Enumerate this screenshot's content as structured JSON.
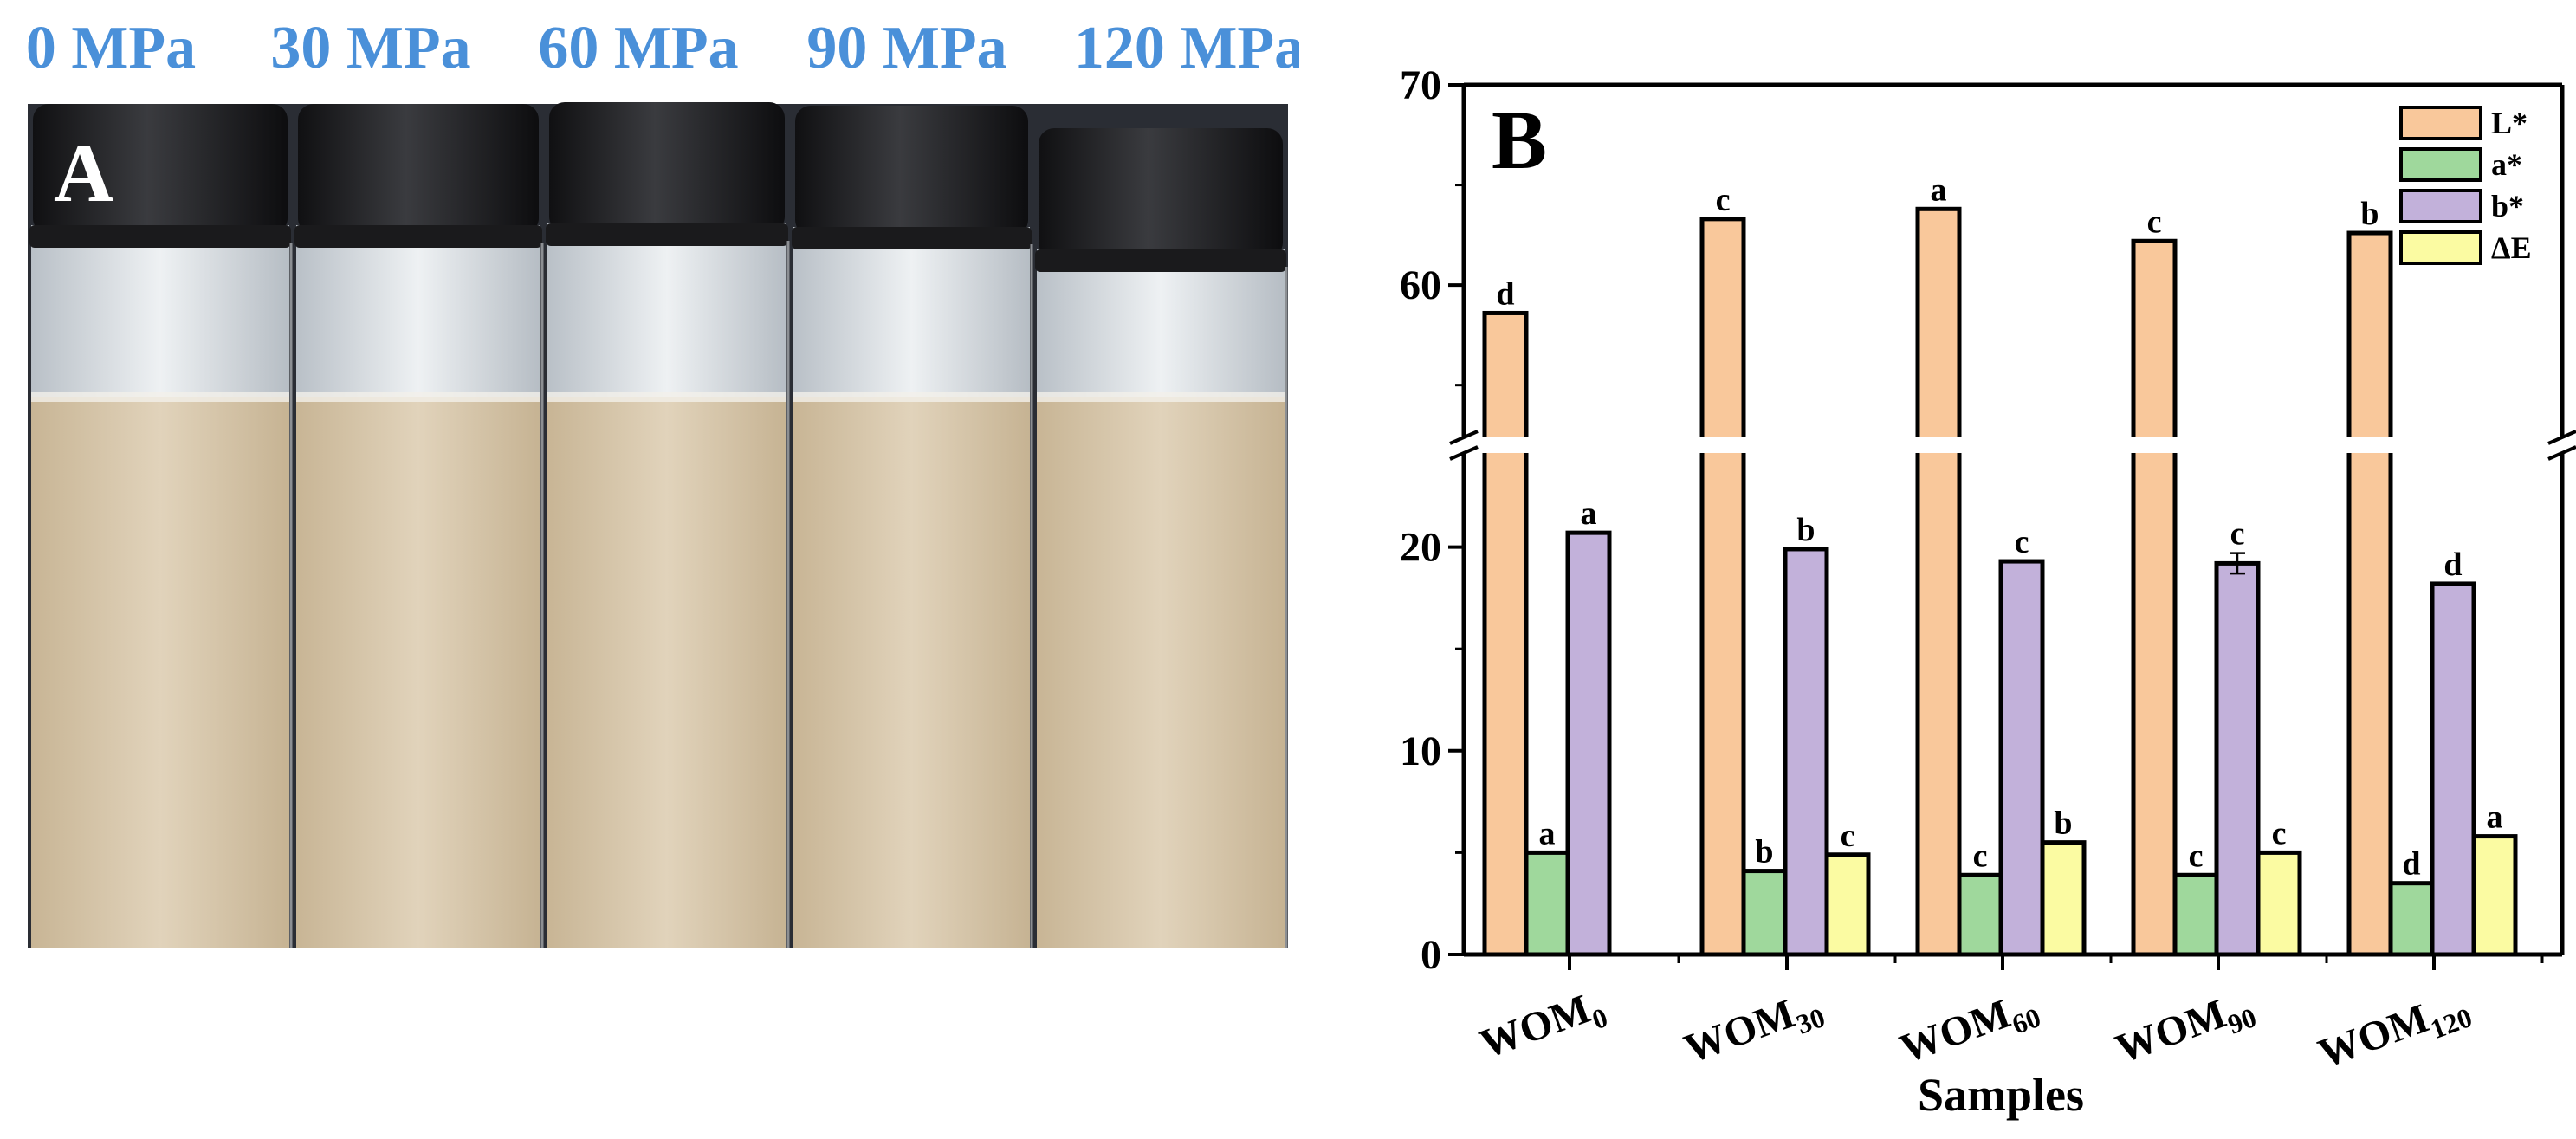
{
  "panel_a": {
    "label": "A",
    "pressures": [
      "0 MPa",
      "30 MPa",
      "60 MPa",
      "90 MPa",
      "120 MPa"
    ],
    "colors": {
      "label_blue": "#4a90d9",
      "background": "#2a2d34",
      "cap": "#1c1c1e",
      "liquid": "#d9c9ae",
      "glass": "#d6dbe0"
    }
  },
  "chart_data": {
    "type": "bar",
    "panel_label": "B",
    "xlabel": "Samples",
    "ylabel": "",
    "categories": [
      {
        "base": "WOM",
        "sub": "0"
      },
      {
        "base": "WOM",
        "sub": "30"
      },
      {
        "base": "WOM",
        "sub": "60"
      },
      {
        "base": "WOM",
        "sub": "90"
      },
      {
        "base": "WOM",
        "sub": "120"
      }
    ],
    "y_axis": {
      "broken": true,
      "lower_range": [
        0,
        25
      ],
      "upper_range": [
        52,
        70
      ],
      "lower_ticks": [
        0,
        10,
        20
      ],
      "upper_ticks": [
        60,
        70
      ]
    },
    "legend": {
      "position": "top-right"
    },
    "series": [
      {
        "name": "L*",
        "color": "#f9c89b",
        "values": [
          58.6,
          63.3,
          63.8,
          62.2,
          62.6
        ],
        "letters": [
          "d",
          "c",
          "a",
          "c",
          "b"
        ]
      },
      {
        "name": "a*",
        "color": "#9fd89c",
        "values": [
          5.0,
          4.1,
          3.9,
          3.9,
          3.5
        ],
        "letters": [
          "a",
          "b",
          "c",
          "c",
          "d"
        ]
      },
      {
        "name": "b*",
        "color": "#c2b1da",
        "values": [
          20.7,
          19.9,
          19.3,
          19.2,
          18.2
        ],
        "letters": [
          "a",
          "b",
          "c",
          "c",
          "d"
        ],
        "errors": [
          0,
          0,
          0,
          0.5,
          0
        ]
      },
      {
        "name": "ΔE",
        "color": "#fbfba2",
        "values": [
          null,
          4.9,
          5.5,
          5.0,
          5.8
        ],
        "letters": [
          "",
          "c",
          "b",
          "c",
          "a"
        ]
      }
    ]
  }
}
